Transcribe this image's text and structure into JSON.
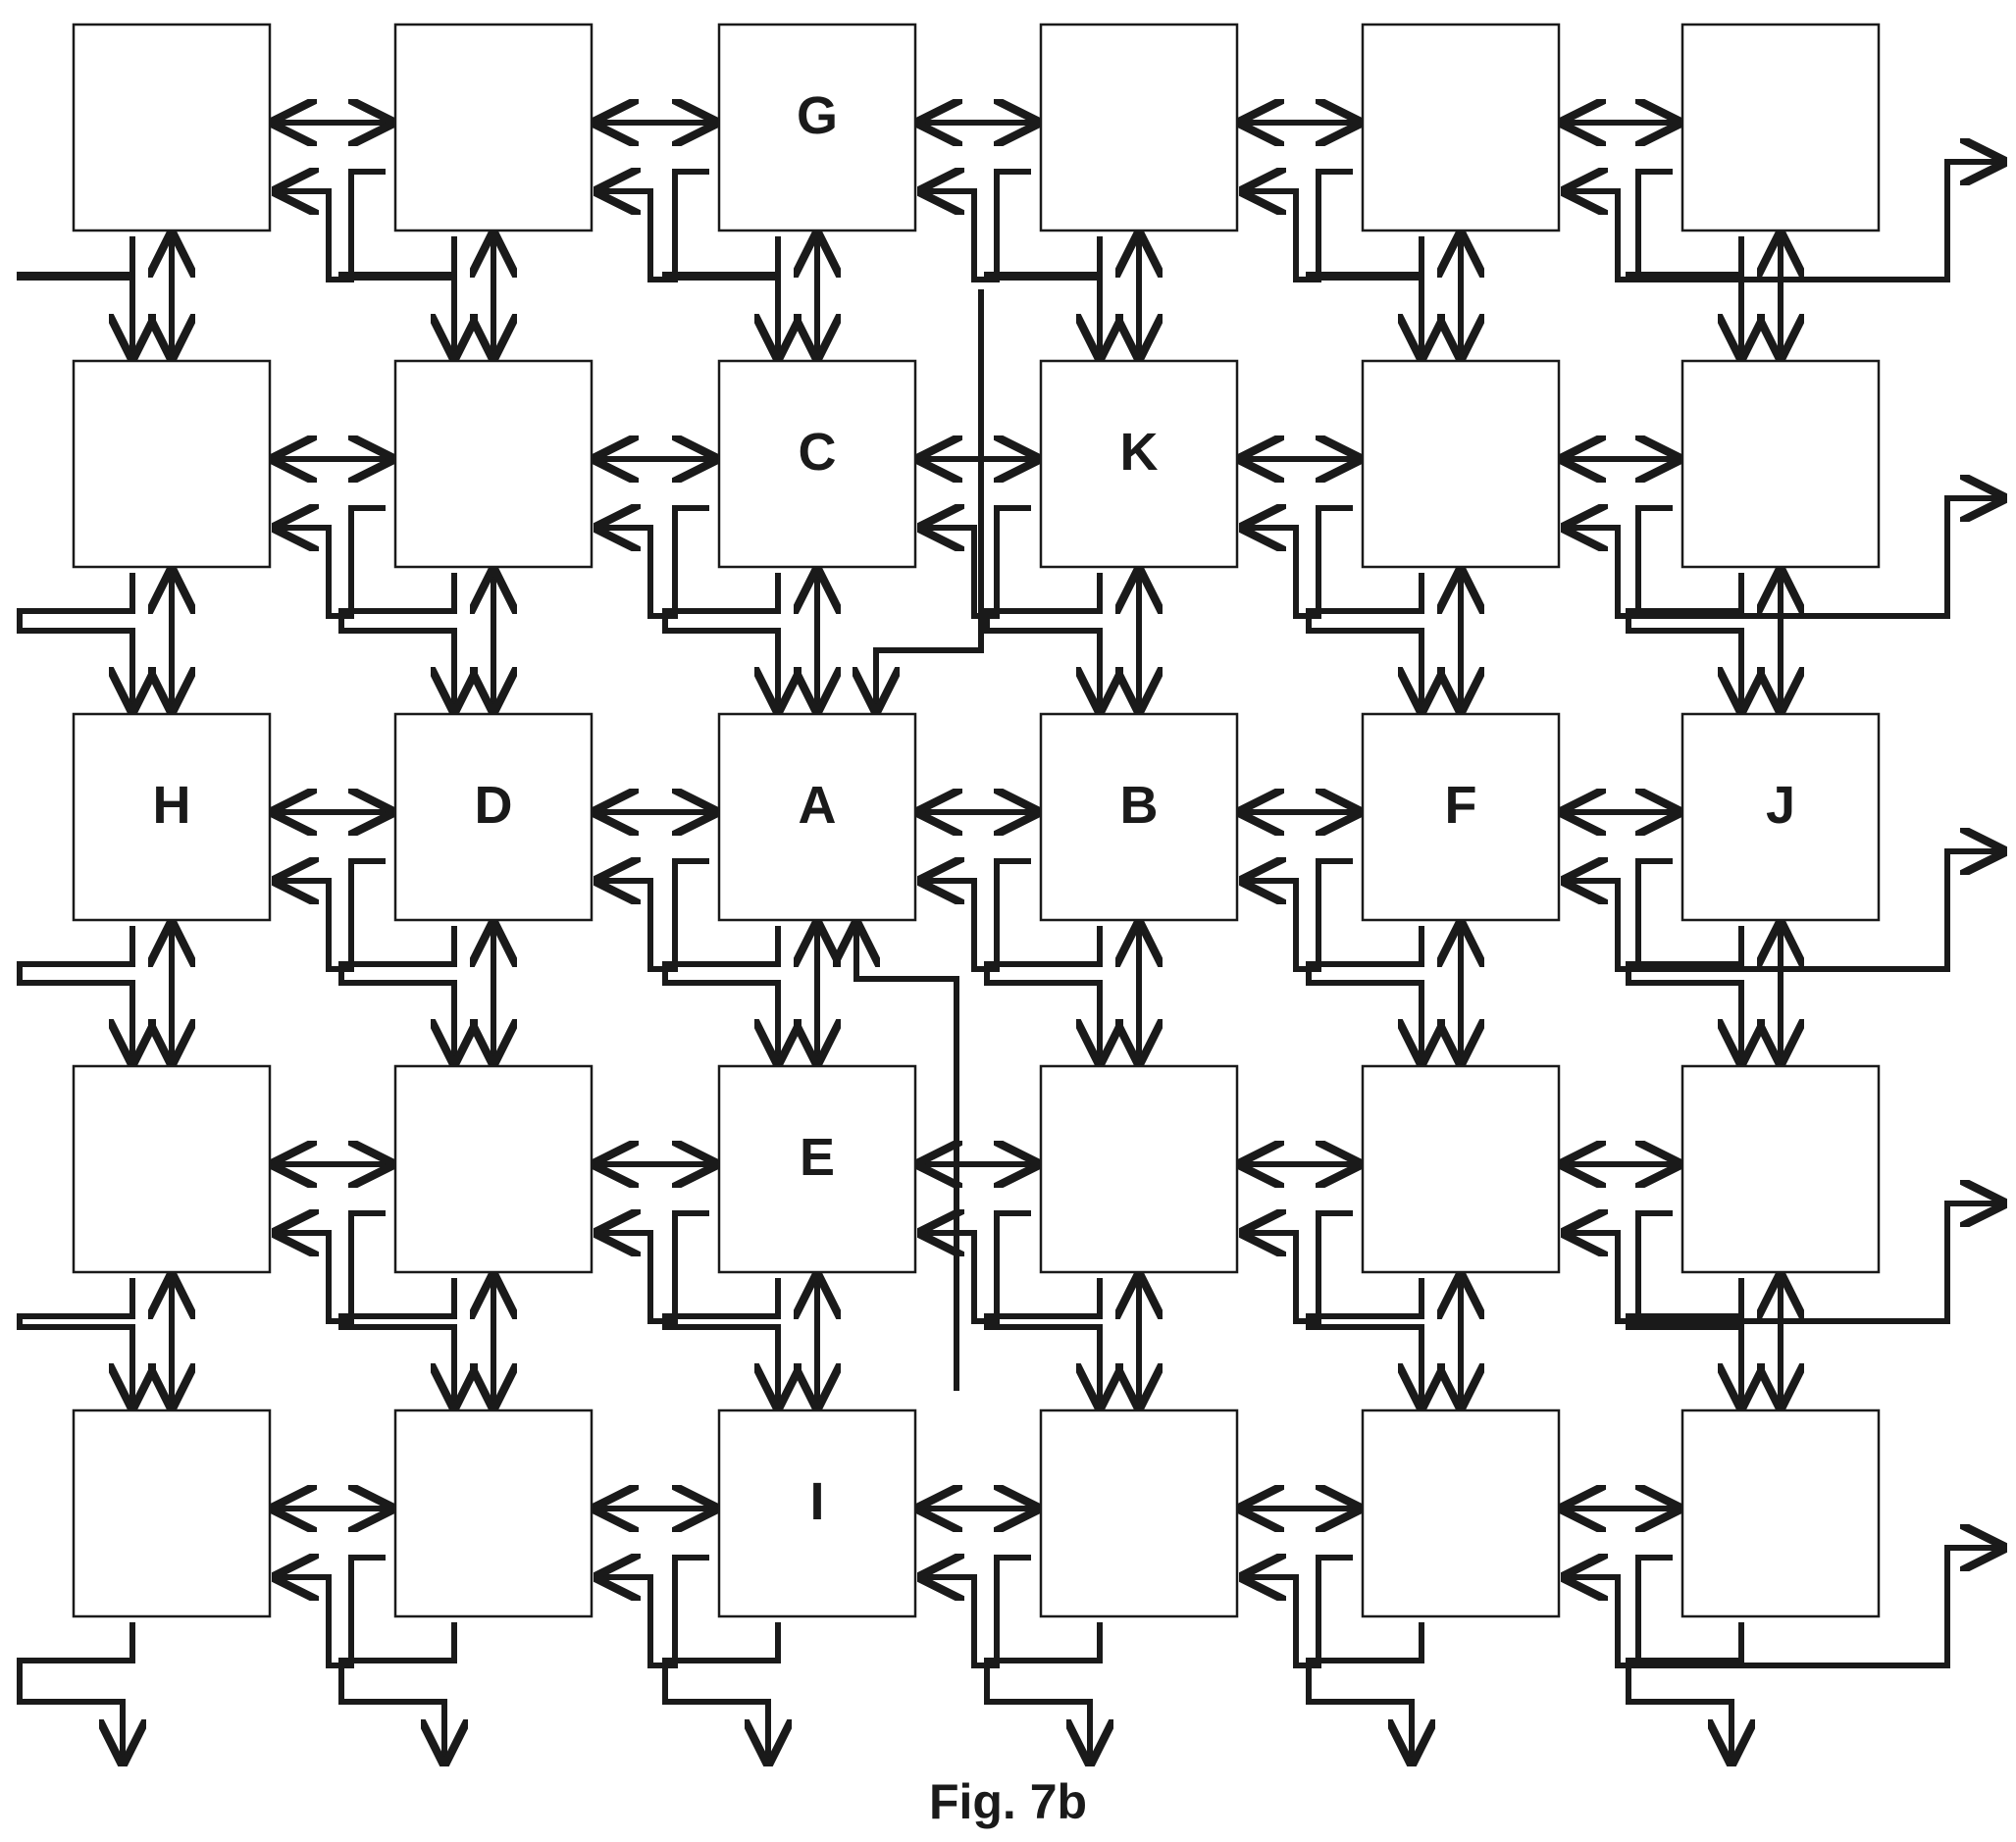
{
  "figure": {
    "caption": "Fig. 7b",
    "rows": 5,
    "cols": 6,
    "stroke_color": "#1a1a1a",
    "background": "#ffffff"
  },
  "node_labels": [
    [
      "",
      "",
      "G",
      "",
      "",
      ""
    ],
    [
      "",
      "",
      "C",
      "K",
      "",
      ""
    ],
    [
      "H",
      "D",
      "A",
      "B",
      "F",
      "J"
    ],
    [
      "",
      "",
      "E",
      "",
      "",
      ""
    ],
    [
      "",
      "",
      "I",
      "",
      "",
      ""
    ]
  ],
  "connections": {
    "horizontal_bidirectional": "adjacent nodes in each row",
    "vertical_bidirectional": "adjacent nodes in each column",
    "diagonal_down_right": "each node to the node one row down and one column right",
    "diagonal_up_right": "each node to the node one row up and one column right",
    "wraparound_outputs": "rightmost column and bottom row exit the array"
  },
  "special_links": [
    {
      "from": "G",
      "to": "A"
    },
    {
      "from": "I",
      "to": "A"
    }
  ]
}
